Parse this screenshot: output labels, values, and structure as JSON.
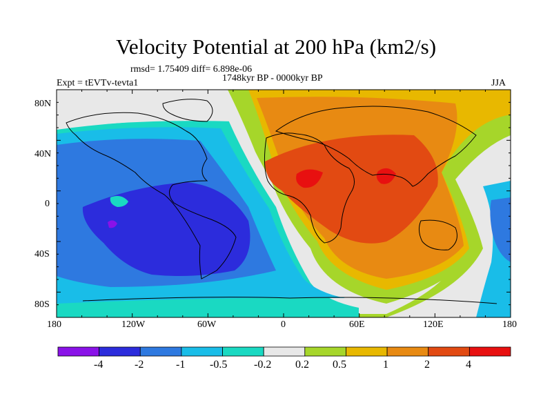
{
  "title": "Velocity Potential at 200 hPa (km2/s)",
  "stats": "rmsd= 1.75409 diff= 6.898e-06",
  "expt": "Expt = tEVTv-tevta1",
  "period": "1748kyr BP - 0000kyr BP",
  "season": "JJA",
  "lon_ticks": [
    "180",
    "120W",
    "60W",
    "0",
    "60E",
    "120E",
    "180"
  ],
  "lat_ticks": [
    "80N",
    "40N",
    "0",
    "40S",
    "80S"
  ],
  "colorbar": {
    "labels": [
      "-4",
      "-2",
      "-1",
      "-0.5",
      "-0.2",
      "0.2",
      "0.5",
      "1",
      "2",
      "4"
    ],
    "colors": [
      "#8a12e8",
      "#2c2cdc",
      "#2e79e0",
      "#19bde8",
      "#1ad9c2",
      "#e8e8e8",
      "#a6d62a",
      "#e8b800",
      "#e88a12",
      "#e24a12",
      "#e81010"
    ]
  }
}
